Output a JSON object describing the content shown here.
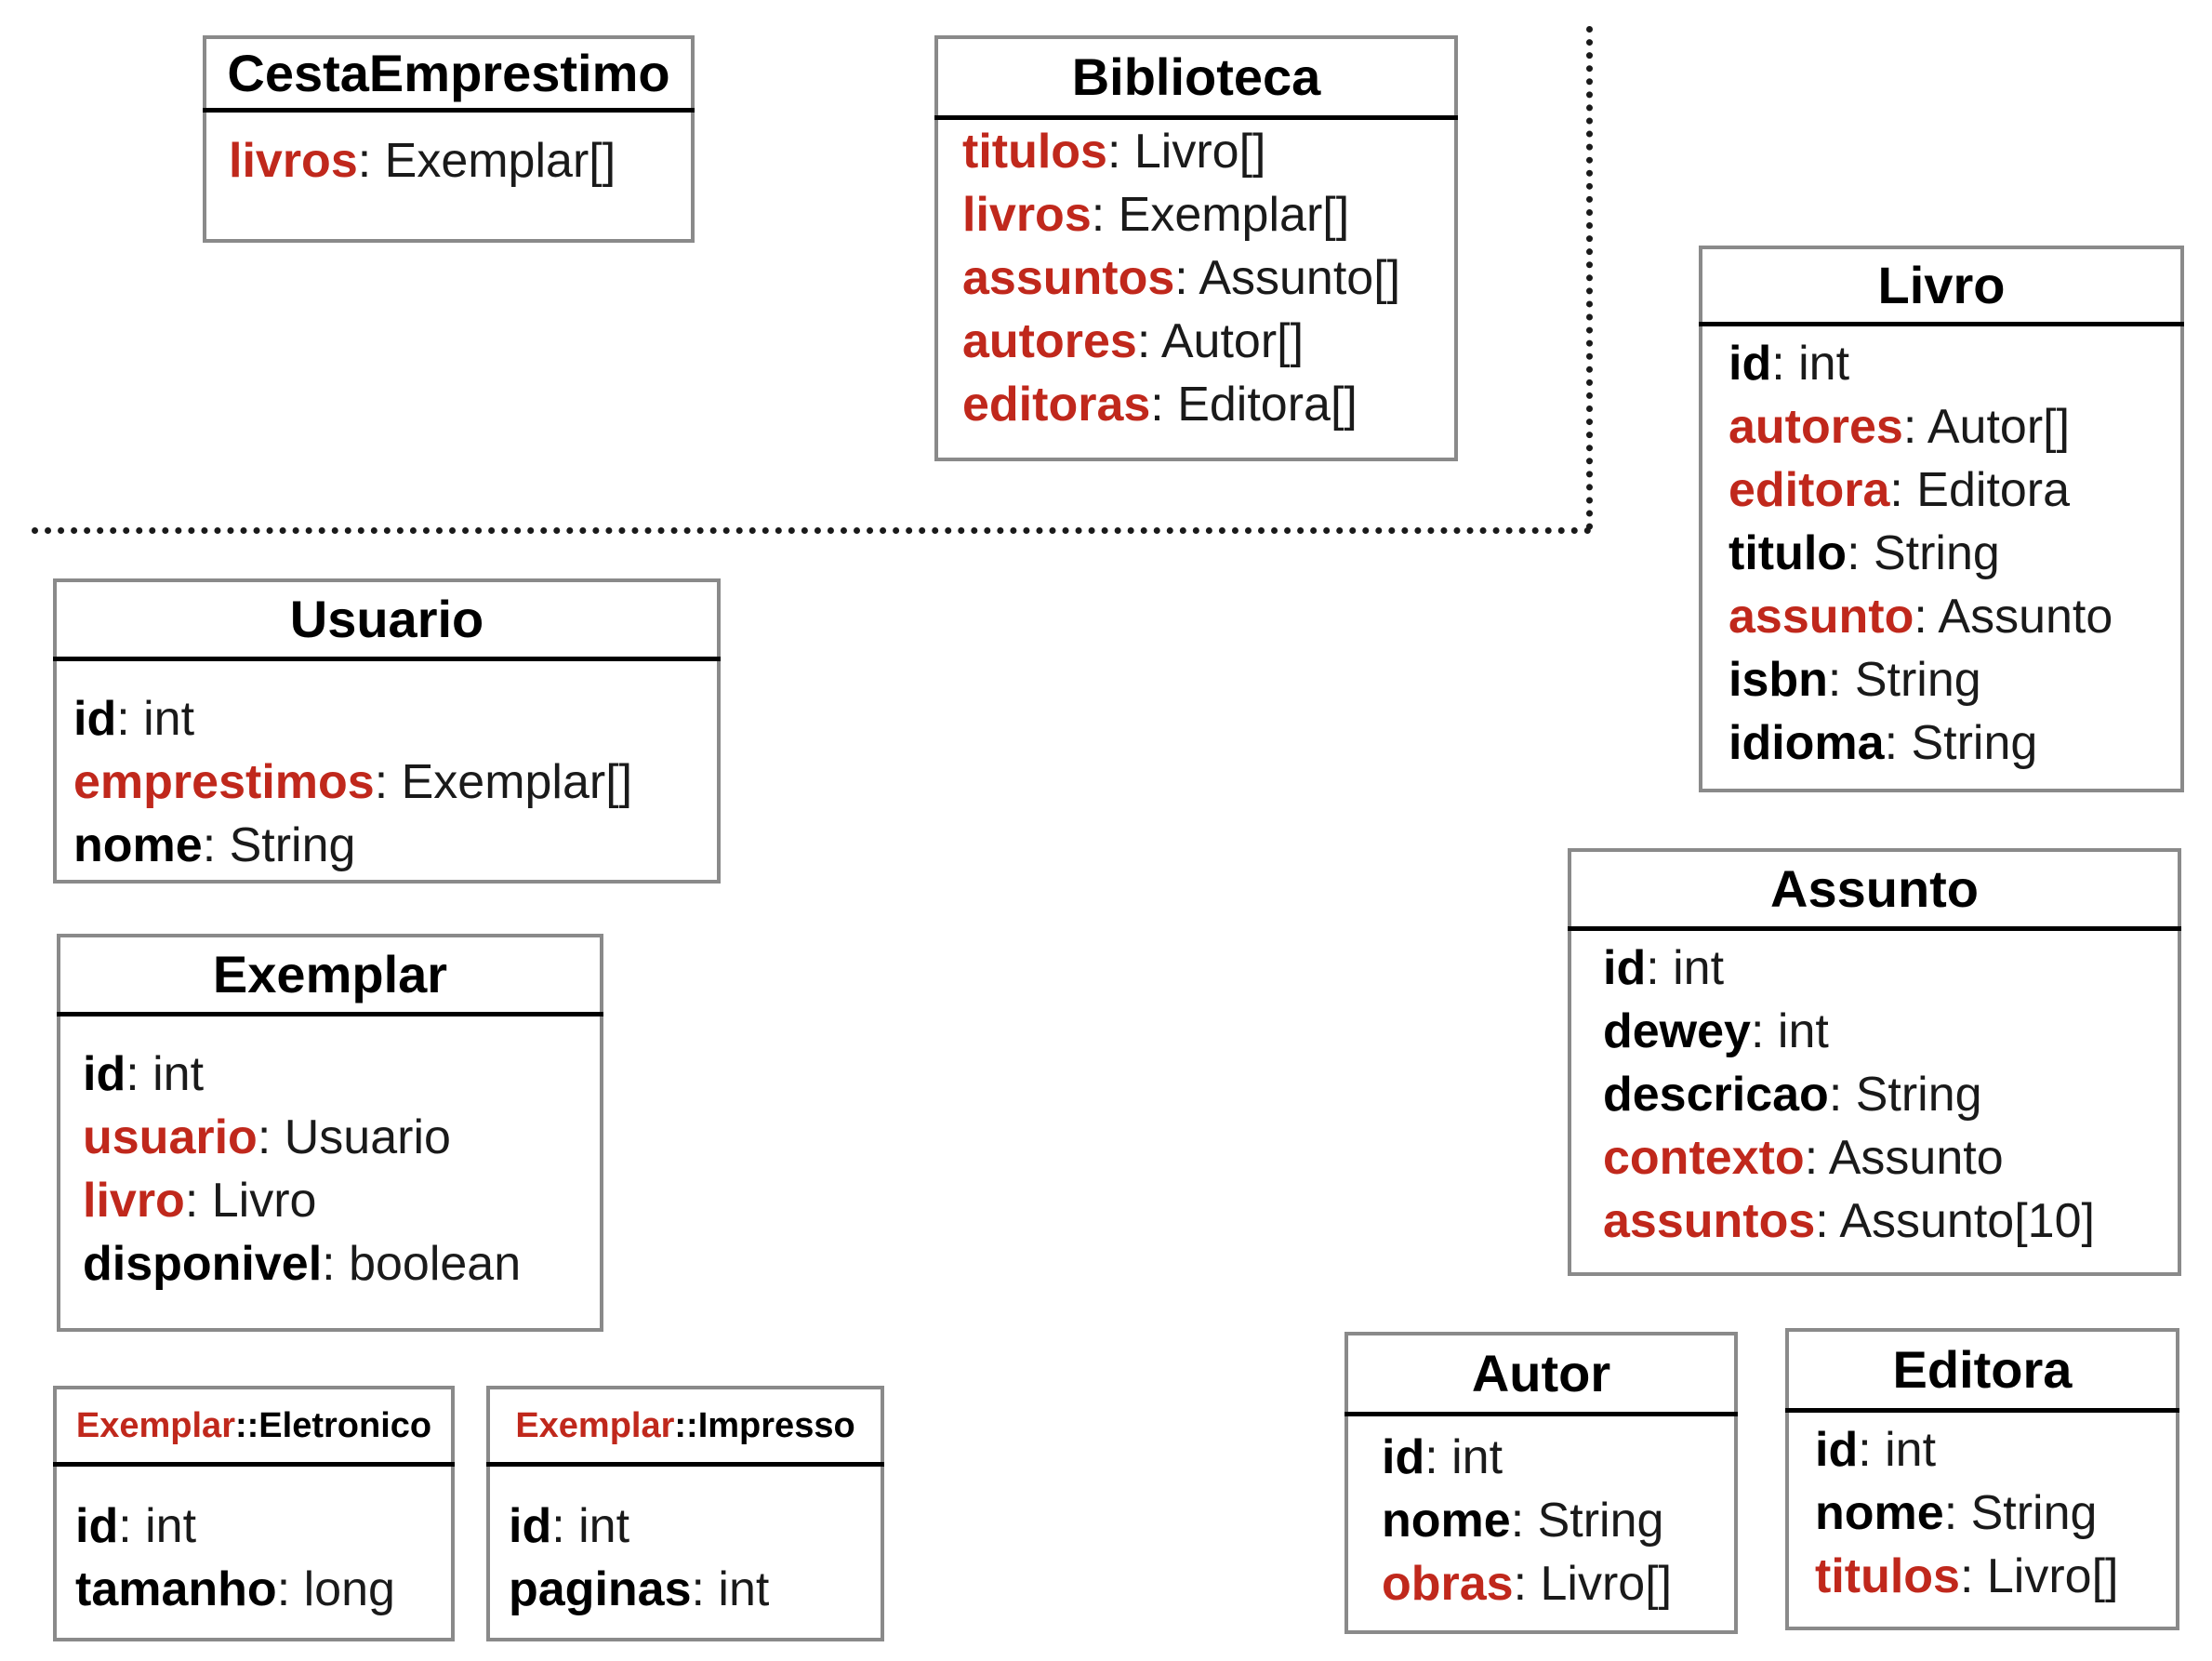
{
  "colors": {
    "reference": "#c0281c",
    "primitive": "#000000",
    "border": "#8a8a8a"
  },
  "classes": {
    "cesta": {
      "name": "CestaEmprestimo",
      "attributes": [
        {
          "name": "livros",
          "sep": ": ",
          "type": "Exemplar[]",
          "ref": true
        }
      ]
    },
    "biblioteca": {
      "name": "Biblioteca",
      "attributes": [
        {
          "name": "titulos",
          "sep": ": ",
          "type": "Livro[]",
          "ref": true
        },
        {
          "name": "livros",
          "sep": ": ",
          "type": "Exemplar[]",
          "ref": true
        },
        {
          "name": "assuntos",
          "sep": ": ",
          "type": "Assunto[]",
          "ref": true
        },
        {
          "name": "autores",
          "sep": ": ",
          "type": "Autor[]",
          "ref": true
        },
        {
          "name": "editoras",
          "sep": ": ",
          "type": "Editora[]",
          "ref": true
        }
      ]
    },
    "livro": {
      "name": "Livro",
      "attributes": [
        {
          "name": "id",
          "sep": ": ",
          "type": "int",
          "ref": false
        },
        {
          "name": "autores",
          "sep": ": ",
          "type": "Autor[]",
          "ref": true
        },
        {
          "name": "editora",
          "sep": ": ",
          "type": "Editora",
          "ref": true
        },
        {
          "name": "titulo",
          "sep": ": ",
          "type": "String",
          "ref": false
        },
        {
          "name": "assunto",
          "sep": ": ",
          "type": "Assunto",
          "ref": true
        },
        {
          "name": "isbn",
          "sep": ": ",
          "type": "String",
          "ref": false
        },
        {
          "name": "idioma",
          "sep": ": ",
          "type": "String",
          "ref": false
        }
      ]
    },
    "usuario": {
      "name": "Usuario",
      "attributes": [
        {
          "name": "id",
          "sep": ": ",
          "type": "int",
          "ref": false
        },
        {
          "name": "emprestimos",
          "sep": ": ",
          "type": "Exemplar[]",
          "ref": true
        },
        {
          "name": "nome",
          "sep": ": ",
          "type": "String",
          "ref": false
        }
      ]
    },
    "exemplar": {
      "name": "Exemplar",
      "attributes": [
        {
          "name": "id",
          "sep": ": ",
          "type": "int",
          "ref": false
        },
        {
          "name": "usuario",
          "sep": ": ",
          "type": "Usuario",
          "ref": true
        },
        {
          "name": "livro",
          "sep": ": ",
          "type": "Livro",
          "ref": true
        },
        {
          "name": "disponivel",
          "sep": ": ",
          "type": "boolean",
          "ref": false
        }
      ]
    },
    "assunto": {
      "name": "Assunto",
      "attributes": [
        {
          "name": "id",
          "sep": ": ",
          "type": "int",
          "ref": false
        },
        {
          "name": "dewey",
          "sep": ": ",
          "type": "int",
          "ref": false
        },
        {
          "name": "descricao",
          "sep": ": ",
          "type": "String",
          "ref": false
        },
        {
          "name": "contexto",
          "sep": ": ",
          "type": "Assunto",
          "ref": true
        },
        {
          "name": "assuntos",
          "sep": ": ",
          "type": "Assunto[10]",
          "ref": true
        }
      ]
    },
    "eletronico": {
      "prefix": "Exemplar",
      "name": "::Eletronico",
      "attributes": [
        {
          "name": "id",
          "sep": ": ",
          "type": "int",
          "ref": false
        },
        {
          "name": "tamanho",
          "sep": ": ",
          "type": "long",
          "ref": false
        }
      ]
    },
    "impresso": {
      "prefix": "Exemplar",
      "name": "::Impresso",
      "attributes": [
        {
          "name": "id",
          "sep": ": ",
          "type": "int",
          "ref": false
        },
        {
          "name": "paginas",
          "sep": ": ",
          "type": "int",
          "ref": false
        }
      ]
    },
    "autor": {
      "name": "Autor",
      "attributes": [
        {
          "name": "id",
          "sep": ": ",
          "type": "int",
          "ref": false
        },
        {
          "name": "nome",
          "sep": ": ",
          "type": "String",
          "ref": false
        },
        {
          "name": "obras",
          "sep": ": ",
          "type": "Livro[]",
          "ref": true
        }
      ]
    },
    "editora": {
      "name": "Editora",
      "attributes": [
        {
          "name": "id",
          "sep": ": ",
          "type": "int",
          "ref": false
        },
        {
          "name": "nome",
          "sep": ": ",
          "type": "String",
          "ref": false
        },
        {
          "name": "titulos",
          "sep": ": ",
          "type": "Livro[]",
          "ref": true
        }
      ]
    }
  }
}
